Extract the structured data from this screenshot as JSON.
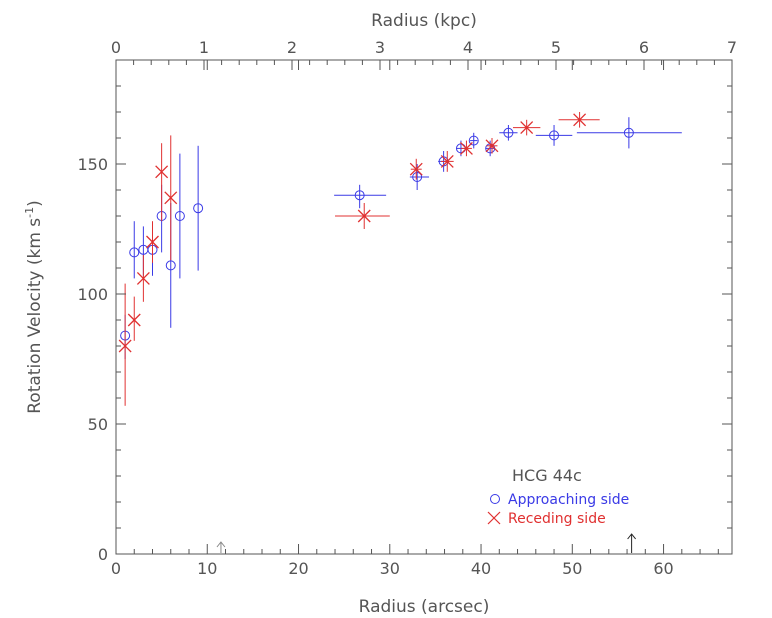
{
  "chart_data": {
    "type": "scatter",
    "title": "HCG 44c",
    "xlabel": "Radius (arcsec)",
    "x2label": "Radius (kpc)",
    "ylabel_main": "Rotation Velocity (km s",
    "ylabel_sup": "-1",
    "ylabel_close": ")",
    "xlim": [
      0,
      67.5
    ],
    "ylim": [
      0,
      190
    ],
    "x2lim": [
      0,
      7
    ],
    "x_ticks": [
      0,
      10,
      20,
      30,
      40,
      50,
      60
    ],
    "x_tick_labels": [
      "0",
      "10",
      "20",
      "30",
      "40",
      "50",
      "60"
    ],
    "x2_ticks": [
      0,
      1,
      2,
      3,
      4,
      5,
      6,
      7
    ],
    "x2_tick_labels": [
      "0",
      "1",
      "2",
      "3",
      "4",
      "5",
      "6",
      "7"
    ],
    "y_ticks": [
      0,
      50,
      100,
      150
    ],
    "y_tick_labels": [
      "0",
      "50",
      "100",
      "150"
    ],
    "legend_position": "bottom-right",
    "markers_on_x_axis": [
      11.5,
      56.5
    ],
    "series": [
      {
        "name": "Approaching side",
        "marker": "circle",
        "color": "#3a3ae6",
        "points": [
          {
            "x": 1.0,
            "y": 84,
            "ylo": 75,
            "yhi": 92,
            "xlo": 1.0,
            "xhi": 1.0
          },
          {
            "x": 2.0,
            "y": 116,
            "ylo": 106,
            "yhi": 128,
            "xlo": 2.0,
            "xhi": 2.0
          },
          {
            "x": 3.0,
            "y": 117,
            "ylo": 107,
            "yhi": 126,
            "xlo": 3.0,
            "xhi": 3.0
          },
          {
            "x": 4.0,
            "y": 117,
            "ylo": 107,
            "yhi": 126,
            "xlo": 4.0,
            "xhi": 4.0
          },
          {
            "x": 5.0,
            "y": 130,
            "ylo": 116,
            "yhi": 142,
            "xlo": 5.0,
            "xhi": 5.0
          },
          {
            "x": 6.0,
            "y": 111,
            "ylo": 87,
            "yhi": 135,
            "xlo": 6.0,
            "xhi": 6.0
          },
          {
            "x": 7.0,
            "y": 130,
            "ylo": 106,
            "yhi": 154,
            "xlo": 7.0,
            "xhi": 7.0
          },
          {
            "x": 9.0,
            "y": 133,
            "ylo": 109,
            "yhi": 157,
            "xlo": 9.0,
            "xhi": 9.0
          },
          {
            "x": 26.7,
            "y": 138,
            "ylo": 133,
            "yhi": 142,
            "xlo": 23.9,
            "xhi": 29.6
          },
          {
            "x": 33.0,
            "y": 145,
            "ylo": 140,
            "yhi": 150,
            "xlo": 32.2,
            "xhi": 34.3
          },
          {
            "x": 35.9,
            "y": 151,
            "ylo": 147,
            "yhi": 155,
            "xlo": 35.3,
            "xhi": 36.5
          },
          {
            "x": 37.8,
            "y": 156,
            "ylo": 153,
            "yhi": 159,
            "xlo": 37.3,
            "xhi": 38.3
          },
          {
            "x": 39.2,
            "y": 159,
            "ylo": 156,
            "yhi": 162,
            "xlo": 38.8,
            "xhi": 39.6
          },
          {
            "x": 41.0,
            "y": 156,
            "ylo": 153,
            "yhi": 159,
            "xlo": 40.5,
            "xhi": 41.5
          },
          {
            "x": 43.0,
            "y": 162,
            "ylo": 159,
            "yhi": 165,
            "xlo": 42.0,
            "xhi": 44.0
          },
          {
            "x": 48.0,
            "y": 161,
            "ylo": 157,
            "yhi": 165,
            "xlo": 46.0,
            "xhi": 50.0
          },
          {
            "x": 56.2,
            "y": 162,
            "ylo": 156,
            "yhi": 168,
            "xlo": 50.5,
            "xhi": 62.0
          }
        ]
      },
      {
        "name": "Receding side",
        "marker": "cross",
        "color": "#e03030",
        "points": [
          {
            "x": 1.0,
            "y": 80,
            "ylo": 57,
            "yhi": 104,
            "xlo": 1.0,
            "xhi": 1.0
          },
          {
            "x": 2.0,
            "y": 90,
            "ylo": 82,
            "yhi": 99,
            "xlo": 2.0,
            "xhi": 2.0
          },
          {
            "x": 3.0,
            "y": 106,
            "ylo": 97,
            "yhi": 115,
            "xlo": 3.0,
            "xhi": 3.0
          },
          {
            "x": 4.0,
            "y": 120,
            "ylo": 112,
            "yhi": 128,
            "xlo": 4.0,
            "xhi": 4.0
          },
          {
            "x": 5.0,
            "y": 147,
            "ylo": 128,
            "yhi": 158,
            "xlo": 5.0,
            "xhi": 5.0
          },
          {
            "x": 6.0,
            "y": 137,
            "ylo": 113,
            "yhi": 161,
            "xlo": 6.0,
            "xhi": 6.0
          },
          {
            "x": 27.2,
            "y": 130,
            "ylo": 125,
            "yhi": 135,
            "xlo": 24.0,
            "xhi": 30.0
          },
          {
            "x": 32.9,
            "y": 148,
            "ylo": 144,
            "yhi": 152,
            "xlo": 32.3,
            "xhi": 33.5
          },
          {
            "x": 36.3,
            "y": 151,
            "ylo": 147,
            "yhi": 155,
            "xlo": 35.6,
            "xhi": 37.0
          },
          {
            "x": 38.4,
            "y": 156,
            "ylo": 153,
            "yhi": 159,
            "xlo": 37.8,
            "xhi": 39.0
          },
          {
            "x": 41.2,
            "y": 157,
            "ylo": 154,
            "yhi": 160,
            "xlo": 40.6,
            "xhi": 41.8
          },
          {
            "x": 45.0,
            "y": 164,
            "ylo": 161,
            "yhi": 167,
            "xlo": 43.5,
            "xhi": 46.5
          },
          {
            "x": 50.8,
            "y": 167,
            "ylo": 164,
            "yhi": 170,
            "xlo": 48.5,
            "xhi": 53.0
          }
        ]
      }
    ]
  }
}
